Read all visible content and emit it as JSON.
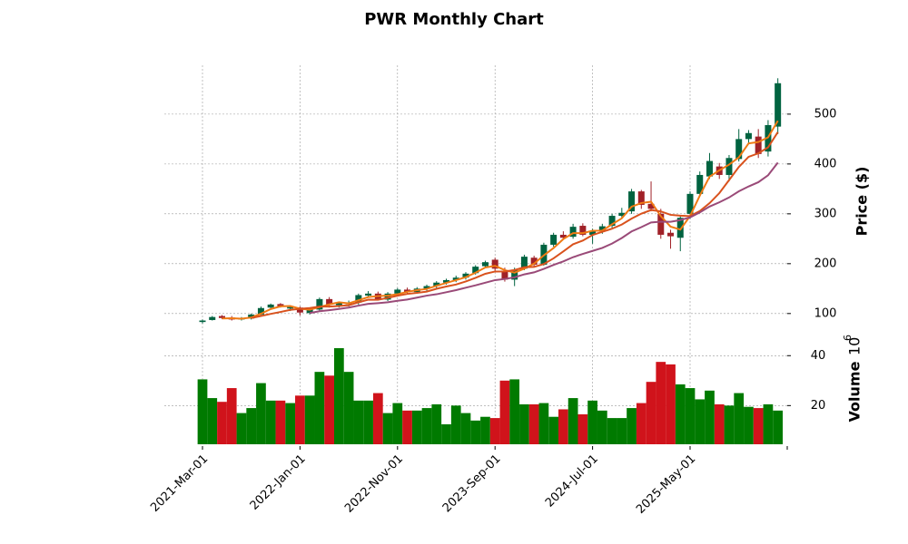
{
  "chart_data": {
    "type": "candlestick",
    "title": "PWR Monthly Chart",
    "categories": [
      "2021-Mar-01",
      null,
      null,
      null,
      null,
      null,
      null,
      null,
      null,
      null,
      "2022-Jan-01",
      null,
      null,
      null,
      null,
      null,
      null,
      null,
      null,
      null,
      "2022-Nov-01",
      null,
      null,
      null,
      null,
      null,
      null,
      null,
      null,
      null,
      "2023-Sep-01",
      null,
      null,
      null,
      null,
      null,
      null,
      null,
      null,
      null,
      "2024-Jul-01",
      null,
      null,
      null,
      null,
      null,
      null,
      null,
      null,
      null,
      "2025-May-01",
      null,
      null,
      null,
      null,
      null,
      null,
      null,
      null,
      null
    ],
    "open": [
      83,
      87,
      95,
      92,
      88,
      90,
      98,
      112,
      119,
      110,
      112,
      101,
      108,
      129,
      117,
      119,
      122,
      136,
      140,
      128,
      140,
      148,
      143,
      150,
      155,
      162,
      167,
      172,
      181,
      195,
      208,
      186,
      168,
      190,
      212,
      198,
      238,
      258,
      254,
      276,
      258,
      266,
      276,
      296,
      305,
      345,
      320,
      300,
      262,
      252,
      300,
      340,
      375,
      395,
      378,
      410,
      450,
      455,
      425,
      475
    ],
    "high": [
      88,
      95,
      97,
      95,
      93,
      100,
      114,
      120,
      121,
      116,
      114,
      110,
      132,
      133,
      124,
      126,
      140,
      145,
      144,
      143,
      151,
      152,
      153,
      158,
      165,
      170,
      176,
      183,
      197,
      206,
      212,
      192,
      192,
      218,
      216,
      242,
      262,
      265,
      280,
      281,
      270,
      280,
      300,
      312,
      350,
      348,
      365,
      310,
      268,
      295,
      345,
      385,
      422,
      402,
      418,
      470,
      468,
      470,
      488,
      572
    ],
    "low": [
      80,
      86,
      89,
      86,
      86,
      88,
      97,
      110,
      112,
      105,
      96,
      98,
      105,
      112,
      112,
      114,
      118,
      132,
      126,
      125,
      137,
      138,
      140,
      145,
      150,
      158,
      163,
      168,
      178,
      192,
      185,
      164,
      155,
      187,
      193,
      196,
      234,
      248,
      250,
      255,
      240,
      260,
      272,
      290,
      300,
      310,
      305,
      250,
      230,
      225,
      290,
      335,
      370,
      370,
      365,
      405,
      440,
      412,
      415,
      460
    ],
    "close": [
      86,
      93,
      91,
      88,
      90,
      98,
      111,
      118,
      114,
      113,
      102,
      108,
      129,
      118,
      121,
      122,
      137,
      140,
      128,
      140,
      148,
      143,
      150,
      155,
      162,
      167,
      172,
      180,
      194,
      203,
      190,
      168,
      188,
      214,
      198,
      238,
      258,
      252,
      274,
      258,
      266,
      275,
      296,
      302,
      345,
      318,
      310,
      258,
      255,
      292,
      340,
      378,
      406,
      378,
      412,
      450,
      462,
      420,
      478,
      562
    ],
    "volume": [
      30.5,
      23,
      21.5,
      27,
      17,
      19,
      29,
      22,
      22,
      21,
      24,
      24,
      33.5,
      32,
      43,
      33.5,
      22,
      22,
      25,
      17,
      21,
      18,
      18,
      19,
      20.5,
      12.5,
      20,
      17,
      14,
      15.5,
      15,
      30,
      30.5,
      20.5,
      20.5,
      21,
      15.5,
      18.5,
      23,
      16.5,
      22,
      18,
      15,
      15,
      19,
      21,
      29.5,
      37.5,
      36.5,
      28.5,
      27,
      22.5,
      26,
      20.5,
      20,
      25,
      19.5,
      19,
      20.5,
      18
    ],
    "up_color": "#006340",
    "down_color": "#a02128",
    "volume_up_color": "#007a00",
    "volume_down_color": "#d0131b",
    "mav": [
      3,
      6,
      12
    ],
    "mav_colors": [
      "#ef7a14",
      "#d9521d",
      "#9a4a78"
    ],
    "ylabel": "Price ($)",
    "ylim": [
      56,
      598
    ],
    "yticks": [
      100,
      200,
      300,
      400,
      500
    ],
    "volume_label": "Volume",
    "volume_scale_base": "10",
    "volume_scale_exponent": "6",
    "y2lim": [
      4.5,
      47
    ],
    "y2ticks": [
      20,
      40
    ],
    "grid": true
  }
}
